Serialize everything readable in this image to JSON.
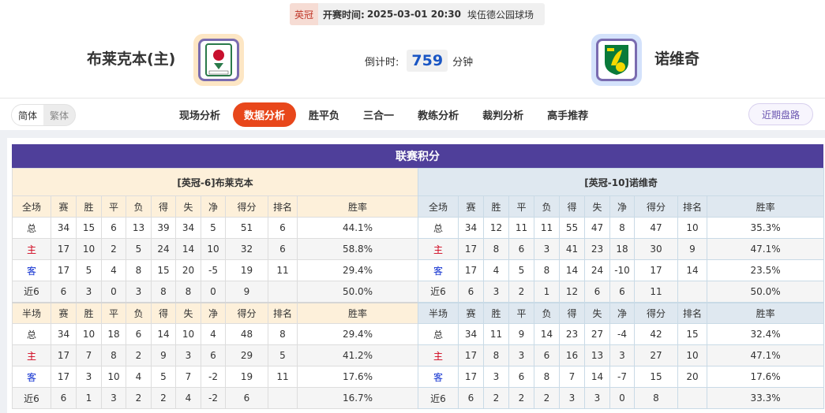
{
  "match": {
    "league": "英冠",
    "kickoff_label": "开赛时间:",
    "kickoff": "2025-03-01 20:30",
    "venue": "埃伍德公园球场",
    "home": "布莱克本(主)",
    "away": "诺维奇",
    "countdown_label": "倒计时:",
    "countdown": "759",
    "countdown_unit": "分钟"
  },
  "nav": {
    "lang": [
      "简体",
      "繁体"
    ],
    "tabs": [
      "现场分析",
      "数据分析",
      "胜平负",
      "三合一",
      "教练分析",
      "裁判分析",
      "高手推荐"
    ],
    "active_tab": "数据分析",
    "recent": "近期盘路"
  },
  "colors": {
    "title_bar": "#4f3f9a",
    "active_tab": "#e8471b",
    "home_label": "#d0021b",
    "away_label": "#1030d0"
  },
  "standings": {
    "title": "联赛积分",
    "columns": [
      "赛",
      "胜",
      "平",
      "负",
      "得",
      "失",
      "净",
      "得分",
      "排名",
      "胜率"
    ],
    "tables": [
      {
        "header": "[英冠-6]布莱克本",
        "sections": [
          {
            "label": "全场",
            "rows": [
              [
                "总",
                "34",
                "15",
                "6",
                "13",
                "39",
                "34",
                "5",
                "51",
                "6",
                "44.1%"
              ],
              [
                "主",
                "17",
                "10",
                "2",
                "5",
                "24",
                "14",
                "10",
                "32",
                "6",
                "58.8%"
              ],
              [
                "客",
                "17",
                "5",
                "4",
                "8",
                "15",
                "20",
                "-5",
                "19",
                "11",
                "29.4%"
              ],
              [
                "近6",
                "6",
                "3",
                "0",
                "3",
                "8",
                "8",
                "0",
                "9",
                "",
                "50.0%"
              ]
            ]
          },
          {
            "label": "半场",
            "rows": [
              [
                "总",
                "34",
                "10",
                "18",
                "6",
                "14",
                "10",
                "4",
                "48",
                "8",
                "29.4%"
              ],
              [
                "主",
                "17",
                "7",
                "8",
                "2",
                "9",
                "3",
                "6",
                "29",
                "5",
                "41.2%"
              ],
              [
                "客",
                "17",
                "3",
                "10",
                "4",
                "5",
                "7",
                "-2",
                "19",
                "11",
                "17.6%"
              ],
              [
                "近6",
                "6",
                "1",
                "3",
                "2",
                "2",
                "4",
                "-2",
                "6",
                "",
                "16.7%"
              ]
            ]
          }
        ]
      },
      {
        "header": "[英冠-10]诺维奇",
        "sections": [
          {
            "label": "全场",
            "rows": [
              [
                "总",
                "34",
                "12",
                "11",
                "11",
                "55",
                "47",
                "8",
                "47",
                "10",
                "35.3%"
              ],
              [
                "主",
                "17",
                "8",
                "6",
                "3",
                "41",
                "23",
                "18",
                "30",
                "9",
                "47.1%"
              ],
              [
                "客",
                "17",
                "4",
                "5",
                "8",
                "14",
                "24",
                "-10",
                "17",
                "14",
                "23.5%"
              ],
              [
                "近6",
                "6",
                "3",
                "2",
                "1",
                "12",
                "6",
                "6",
                "11",
                "",
                "50.0%"
              ]
            ]
          },
          {
            "label": "半场",
            "rows": [
              [
                "总",
                "34",
                "11",
                "9",
                "14",
                "23",
                "27",
                "-4",
                "42",
                "15",
                "32.4%"
              ],
              [
                "主",
                "17",
                "8",
                "3",
                "6",
                "16",
                "13",
                "3",
                "27",
                "10",
                "47.1%"
              ],
              [
                "客",
                "17",
                "3",
                "6",
                "8",
                "7",
                "14",
                "-7",
                "15",
                "20",
                "17.6%"
              ],
              [
                "近6",
                "6",
                "2",
                "2",
                "2",
                "3",
                "3",
                "0",
                "8",
                "",
                "33.3%"
              ]
            ]
          }
        ]
      }
    ]
  }
}
